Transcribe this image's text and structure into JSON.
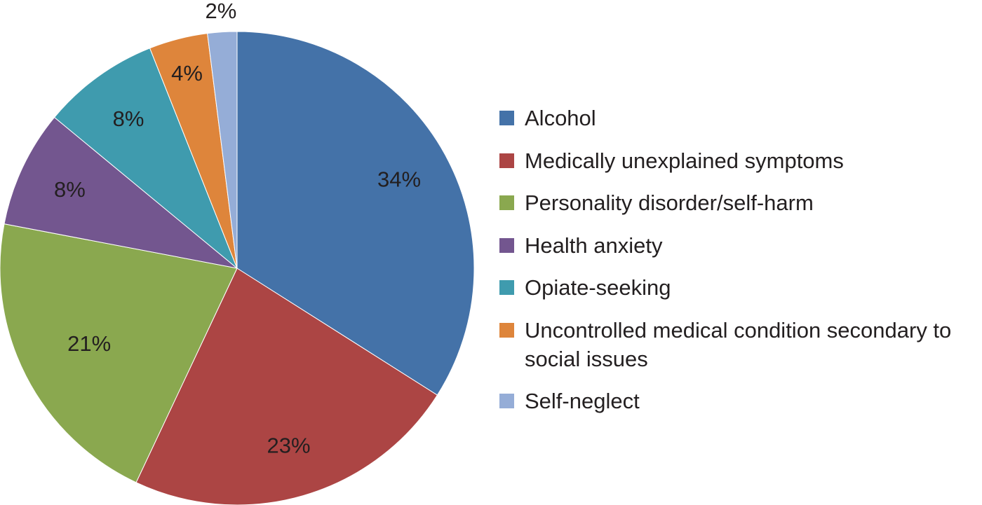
{
  "chart_data": {
    "type": "pie",
    "title": "",
    "categories": [
      "Alcohol",
      "Medically unexplained symptoms",
      "Personality disorder/self-harm",
      "Health anxiety",
      "Opiate-seeking",
      "Uncontrolled medical condition secondary to social issues",
      "Self-neglect"
    ],
    "values": [
      34,
      23,
      21,
      8,
      8,
      4,
      2
    ],
    "value_labels": [
      "34%",
      "23%",
      "21%",
      "8%",
      "8%",
      "4%",
      "2%"
    ],
    "colors": [
      "#4472a8",
      "#ac4544",
      "#8aa84f",
      "#73568f",
      "#3f9bae",
      "#de853b",
      "#95add7"
    ],
    "label_color": "#231f20",
    "start_angle_deg": 0,
    "direction": "clockwise",
    "legend_position": "right",
    "legend": [
      {
        "label": "Alcohol"
      },
      {
        "label": "Medically unexplained symptoms"
      },
      {
        "label": "Personality disorder/self-harm"
      },
      {
        "label": "Health anxiety"
      },
      {
        "label": "Opiate-seeking"
      },
      {
        "label": "Uncontrolled medical condition secondary to social issues"
      },
      {
        "label": "Self-neglect"
      }
    ]
  }
}
